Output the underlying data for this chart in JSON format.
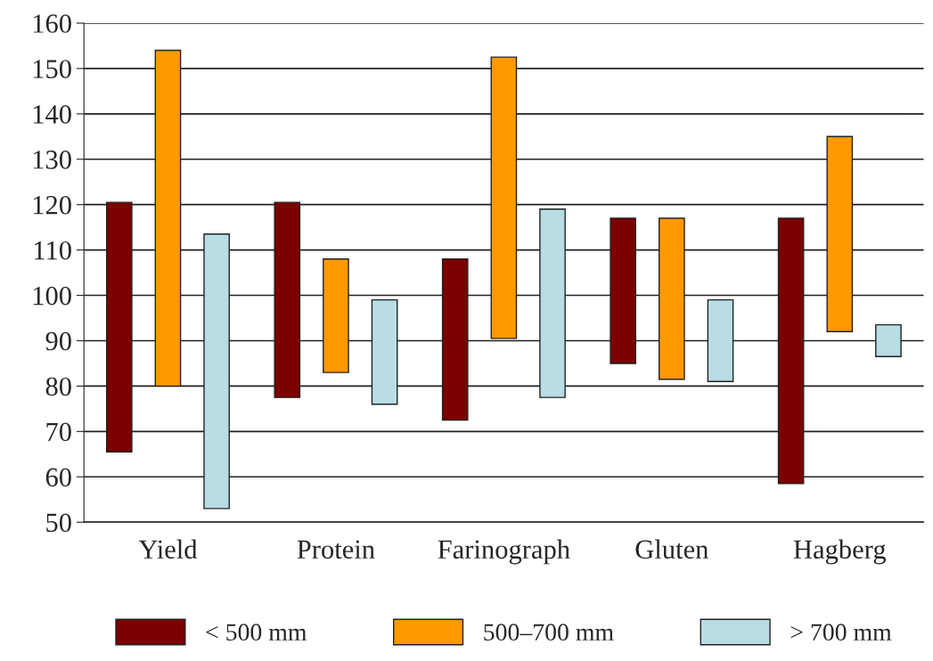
{
  "chart_data": {
    "type": "bar",
    "categories": [
      "Yield",
      "Protein",
      "Farinograph",
      "Gluten",
      "Hagberg"
    ],
    "series": [
      {
        "name": "< 500 mm",
        "color": "#7b0000",
        "base": [
          65.5,
          77.5,
          72.5,
          85,
          58.5
        ],
        "values": [
          55,
          43,
          35.5,
          32,
          58.5
        ]
      },
      {
        "name": "500–700 mm",
        "color": "#ff9900",
        "base": [
          80,
          83,
          90.5,
          81.5,
          92
        ],
        "values": [
          74,
          25,
          62,
          35.5,
          43
        ]
      },
      {
        "name": "> 700 mm",
        "color": "#b8dde3",
        "base": [
          53,
          76,
          77.5,
          81,
          86.5
        ],
        "values": [
          60.5,
          23,
          41.5,
          18,
          7
        ]
      }
    ],
    "ylim": [
      50,
      160
    ],
    "yticks": [
      50,
      60,
      70,
      80,
      90,
      100,
      110,
      120,
      130,
      140,
      150,
      160
    ],
    "grid": "y",
    "legend": "bottom"
  }
}
